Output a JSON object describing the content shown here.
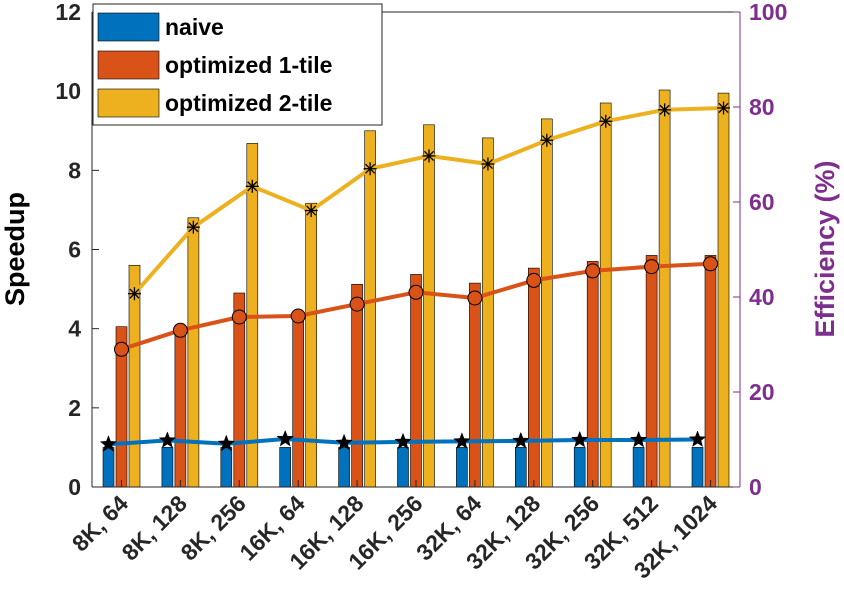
{
  "chart_data": {
    "type": "bar",
    "categories": [
      "8K, 64",
      "8K, 128",
      "8K, 256",
      "16K, 64",
      "16K, 128",
      "16K, 256",
      "32K, 64",
      "32K, 128",
      "32K, 256",
      "32K, 512",
      "32K, 1024"
    ],
    "series": [
      {
        "name": "naive",
        "color": "#0072bd",
        "values": [
          1.0,
          1.0,
          1.0,
          1.0,
          1.0,
          1.0,
          1.0,
          1.0,
          1.0,
          1.0,
          1.0
        ]
      },
      {
        "name": "optimized 1-tile",
        "color": "#d95319",
        "values": [
          4.05,
          4.0,
          4.9,
          4.4,
          5.12,
          5.37,
          5.15,
          5.53,
          5.7,
          5.85,
          5.85
        ]
      },
      {
        "name": "optimized 2-tile",
        "color": "#edb120",
        "values": [
          5.6,
          6.8,
          8.68,
          7.17,
          9.0,
          9.15,
          8.82,
          9.3,
          9.7,
          10.03,
          9.95
        ]
      }
    ],
    "efficiency_series": [
      {
        "color": "#0072bd",
        "marker": "star",
        "values": [
          9.0,
          9.8,
          9.1,
          10.1,
          9.3,
          9.5,
          9.6,
          9.7,
          9.9,
          9.9,
          10.0
        ]
      },
      {
        "color": "#d95319",
        "marker": "circle",
        "values": [
          29.0,
          33.0,
          35.8,
          36.0,
          38.5,
          41.0,
          39.8,
          43.5,
          45.5,
          46.4,
          47.0
        ]
      },
      {
        "color": "#edb120",
        "marker": "asterisk",
        "values": [
          40.7,
          54.7,
          63.3,
          58.2,
          67.0,
          69.7,
          68.0,
          73.0,
          77.0,
          79.4,
          79.8
        ]
      }
    ],
    "ylabel": "Speedup",
    "ylim": [
      0,
      12
    ],
    "yticks": [
      0,
      2,
      4,
      6,
      8,
      10,
      12
    ],
    "y2label": "Efficiency (%)",
    "y2lim": [
      0,
      100
    ],
    "y2ticks": [
      0,
      20,
      40,
      60,
      80,
      100
    ],
    "y2color": "#7e2f8e",
    "legend_position": "top-left",
    "grid": false
  }
}
